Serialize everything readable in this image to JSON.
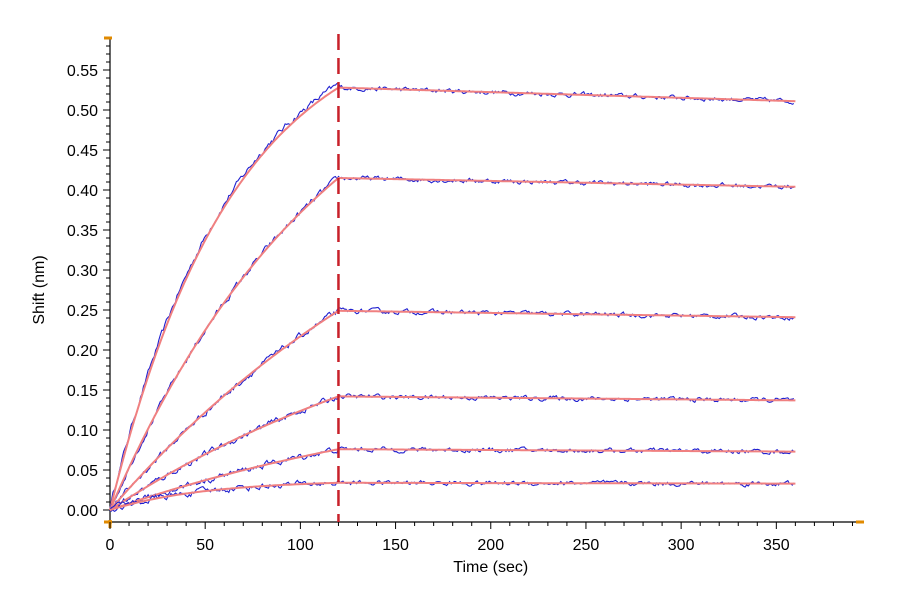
{
  "chart_data": {
    "type": "line",
    "title": "",
    "xlabel": "Time (sec)",
    "ylabel": "Shift (nm)",
    "xlim": [
      0,
      395
    ],
    "ylim": [
      -0.015,
      0.59
    ],
    "x_ticks": [
      0,
      50,
      100,
      150,
      200,
      250,
      300,
      350
    ],
    "y_ticks": [
      0.0,
      0.05,
      0.1,
      0.15,
      0.2,
      0.25,
      0.3,
      0.35,
      0.4,
      0.45,
      0.5,
      0.55
    ],
    "x_tick_labels": [
      "0",
      "50",
      "100",
      "150",
      "200",
      "250",
      "300",
      "350"
    ],
    "y_tick_labels": [
      "0.00",
      "0.05",
      "0.10",
      "0.15",
      "0.20",
      "0.25",
      "0.30",
      "0.35",
      "0.40",
      "0.45",
      "0.50",
      "0.55"
    ],
    "association_end": 120,
    "series": [
      {
        "kind": "association-dissociation",
        "rmax_at_120": 0.528,
        "end_at_360": 0.511,
        "curvature": 0.025
      },
      {
        "kind": "association-dissociation",
        "rmax_at_120": 0.415,
        "end_at_360": 0.404,
        "curvature": 0.012
      },
      {
        "kind": "association-dissociation",
        "rmax_at_120": 0.249,
        "end_at_360": 0.241,
        "curvature": 0.006
      },
      {
        "kind": "association-dissociation",
        "rmax_at_120": 0.142,
        "end_at_360": 0.137,
        "curvature": 0.004
      },
      {
        "kind": "association-dissociation",
        "rmax_at_120": 0.076,
        "end_at_360": 0.073,
        "curvature": 0.002
      },
      {
        "kind": "association-dissociation",
        "rmax_at_120": 0.034,
        "end_at_360": 0.033,
        "curvature": 0.008
      }
    ],
    "x_end": 360,
    "colors": {
      "data": "#2020d0",
      "fit": "#f08080",
      "marker_line": "#c8202a",
      "axis": "#000000",
      "axis_accent": "#e08a00"
    },
    "grid": false,
    "legend": "none"
  }
}
